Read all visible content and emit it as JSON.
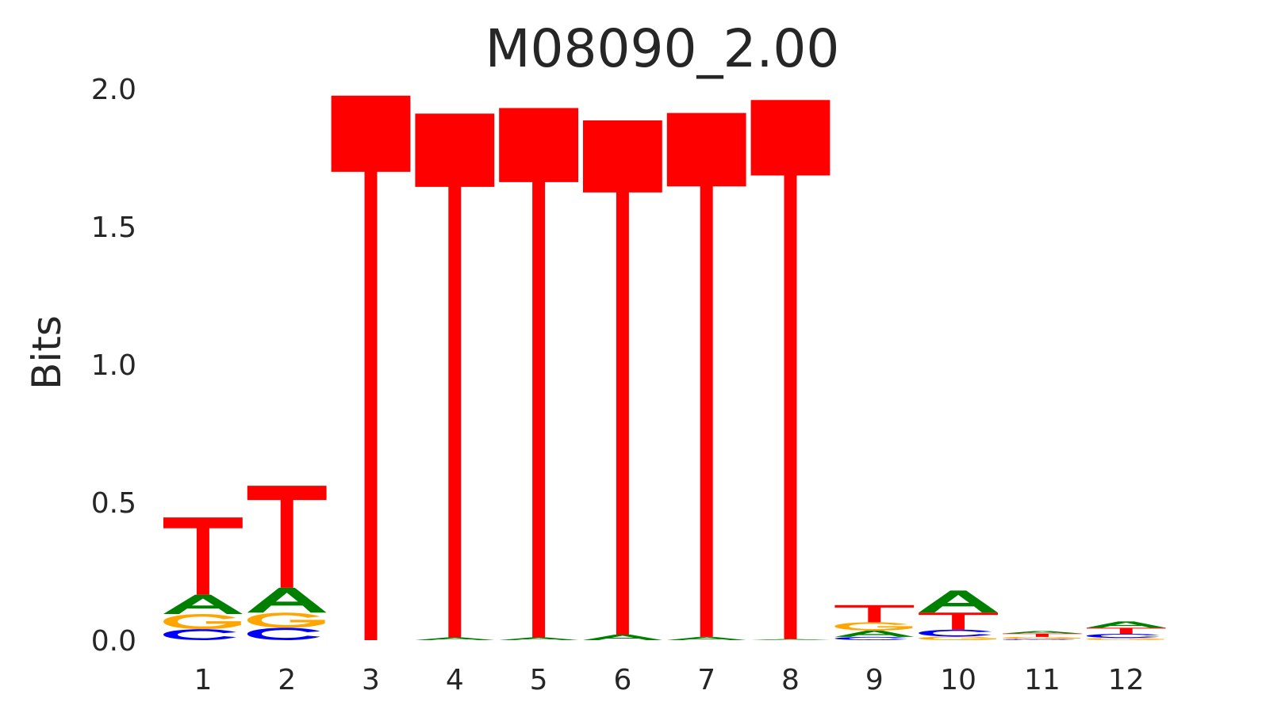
{
  "chart_data": {
    "type": "sequence-logo",
    "title": "M08090_2.00",
    "xlabel": "",
    "ylabel": "Bits",
    "ylim": [
      0,
      2.0
    ],
    "yticks": [
      "0.0",
      "0.5",
      "1.0",
      "1.5",
      "2.0"
    ],
    "grid": false,
    "legend": "none",
    "colors": {
      "A": "#008000",
      "C": "#0000ff",
      "G": "#ffa500",
      "T": "#ff0000"
    },
    "positions": [
      {
        "label": "1",
        "letters": [
          {
            "base": "C",
            "height": 0.04
          },
          {
            "base": "G",
            "height": 0.055
          },
          {
            "base": "A",
            "height": 0.07
          },
          {
            "base": "T",
            "height": 0.28
          }
        ]
      },
      {
        "label": "2",
        "letters": [
          {
            "base": "C",
            "height": 0.045
          },
          {
            "base": "G",
            "height": 0.055
          },
          {
            "base": "A",
            "height": 0.09
          },
          {
            "base": "T",
            "height": 0.37
          }
        ]
      },
      {
        "label": "3",
        "letters": [
          {
            "base": "T",
            "height": 1.975
          }
        ]
      },
      {
        "label": "4",
        "letters": [
          {
            "base": "A",
            "height": 0.01
          },
          {
            "base": "T",
            "height": 1.9
          }
        ]
      },
      {
        "label": "5",
        "letters": [
          {
            "base": "A",
            "height": 0.01
          },
          {
            "base": "T",
            "height": 1.92
          }
        ]
      },
      {
        "label": "6",
        "letters": [
          {
            "base": "A",
            "height": 0.02
          },
          {
            "base": "T",
            "height": 1.865
          }
        ]
      },
      {
        "label": "7",
        "letters": [
          {
            "base": "A",
            "height": 0.012
          },
          {
            "base": "T",
            "height": 1.9
          }
        ]
      },
      {
        "label": "8",
        "letters": [
          {
            "base": "A",
            "height": 0.004
          },
          {
            "base": "T",
            "height": 1.955
          }
        ]
      },
      {
        "label": "9",
        "letters": [
          {
            "base": "C",
            "height": 0.012
          },
          {
            "base": "A",
            "height": 0.023
          },
          {
            "base": "G",
            "height": 0.03
          },
          {
            "base": "T",
            "height": 0.062
          }
        ]
      },
      {
        "label": "10",
        "letters": [
          {
            "base": "G",
            "height": 0.013
          },
          {
            "base": "C",
            "height": 0.025
          },
          {
            "base": "T",
            "height": 0.062
          },
          {
            "base": "A",
            "height": 0.08
          }
        ]
      },
      {
        "label": "11",
        "letters": [
          {
            "base": "C",
            "height": 0.004
          },
          {
            "base": "G",
            "height": 0.008
          },
          {
            "base": "T",
            "height": 0.012
          },
          {
            "base": "A",
            "height": 0.009
          }
        ]
      },
      {
        "label": "12",
        "letters": [
          {
            "base": "G",
            "height": 0.008
          },
          {
            "base": "C",
            "height": 0.015
          },
          {
            "base": "T",
            "height": 0.022
          },
          {
            "base": "A",
            "height": 0.023
          }
        ]
      }
    ]
  }
}
